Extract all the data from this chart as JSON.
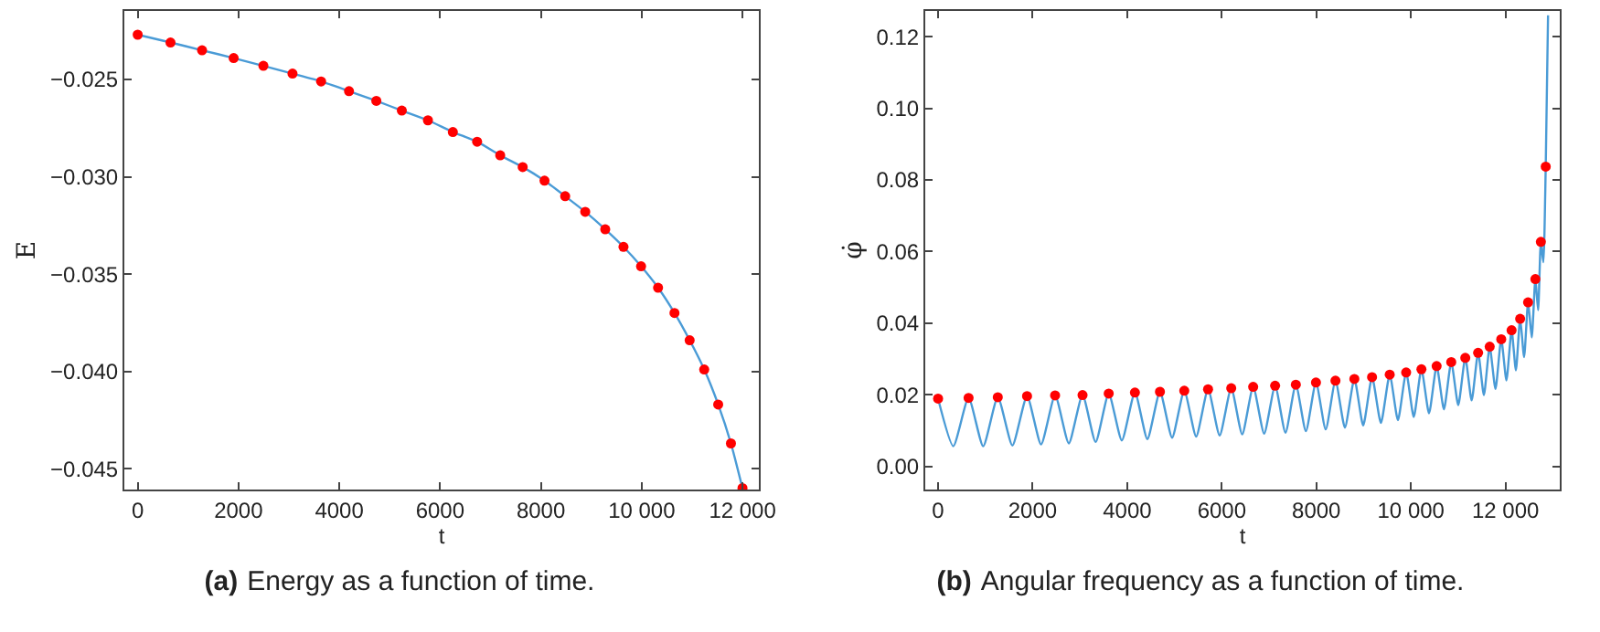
{
  "chart_data": [
    {
      "type": "line",
      "xlabel": "t",
      "ylabel": "E",
      "annotations": [
        "(a)",
        "Energy as a function of time."
      ],
      "xlim": [
        -265,
        12325
      ],
      "ylim": [
        -0.04607,
        -0.02148
      ],
      "xticks": [
        0,
        2000,
        4000,
        6000,
        8000,
        10000,
        12000
      ],
      "yticks": [
        {
          "value": -0.045,
          "label": "−0.045"
        },
        {
          "value": -0.04,
          "label": "−0.040"
        },
        {
          "value": -0.035,
          "label": "−0.035"
        },
        {
          "value": -0.03,
          "label": "−0.030"
        },
        {
          "value": -0.025,
          "label": "−0.025"
        }
      ],
      "grid": false,
      "series": [
        {
          "color": "#4a9bd6",
          "x": [
            0,
            651,
            1277,
            1904,
            2494,
            3072,
            3639,
            4193,
            4735,
            5241,
            5759,
            6253,
            6735,
            7193,
            7639,
            8072,
            8482,
            8880,
            9277,
            9639,
            9988,
            10325,
            10651,
            10952,
            11241,
            11518,
            11771,
            12000
          ],
          "values": [
            -0.0227,
            -0.0231,
            -0.0235,
            -0.0239,
            -0.0243,
            -0.0247,
            -0.0251,
            -0.0256,
            -0.0261,
            -0.0266,
            -0.0271,
            -0.0277,
            -0.0282,
            -0.0289,
            -0.0295,
            -0.0302,
            -0.031,
            -0.0318,
            -0.0327,
            -0.0336,
            -0.0346,
            -0.0357,
            -0.037,
            -0.0384,
            -0.0399,
            -0.0417,
            -0.0437,
            -0.046
          ]
        },
        {
          "type": "scatter",
          "marker": "circle",
          "color": "#ff0000",
          "x": [
            0,
            651,
            1277,
            1904,
            2494,
            3072,
            3639,
            4193,
            4735,
            5241,
            5759,
            6253,
            6735,
            7193,
            7639,
            8072,
            8482,
            8880,
            9277,
            9639,
            9988,
            10325,
            10651,
            10952,
            11241,
            11518,
            11771,
            12000
          ],
          "values": [
            -0.0227,
            -0.0231,
            -0.0235,
            -0.0239,
            -0.0243,
            -0.0247,
            -0.0251,
            -0.0256,
            -0.0261,
            -0.0266,
            -0.0271,
            -0.0277,
            -0.0282,
            -0.0289,
            -0.0295,
            -0.0302,
            -0.031,
            -0.0318,
            -0.0327,
            -0.0336,
            -0.0346,
            -0.0357,
            -0.037,
            -0.0384,
            -0.0399,
            -0.0417,
            -0.0437,
            -0.046
          ]
        }
      ]
    },
    {
      "type": "line",
      "xlabel": "t",
      "ylabel": "φ̇",
      "annotations": [
        "(b)",
        "Angular frequency as a function of time."
      ],
      "xlim": [
        -271,
        13148
      ],
      "ylim": [
        -0.0065,
        0.1272
      ],
      "xticks": [
        0,
        2000,
        4000,
        6000,
        8000,
        10000,
        12000
      ],
      "yticks": [
        {
          "value": 0,
          "label": "0.00"
        },
        {
          "value": 0.02,
          "label": "0.02"
        },
        {
          "value": 0.04,
          "label": "0.04"
        },
        {
          "value": 0.06,
          "label": "0.06"
        },
        {
          "value": 0.08,
          "label": "0.08"
        },
        {
          "value": 0.1,
          "label": "0.10"
        },
        {
          "value": 0.12,
          "label": "0.12"
        }
      ],
      "grid": false,
      "series": [
        {
          "color": "#4a9bd6",
          "x": [
            0,
            322,
            645,
            954,
            1263,
            1572,
            1882,
            2178,
            2475,
            2765,
            3055,
            3332,
            3609,
            3886,
            4163,
            4427,
            4692,
            4950,
            5207,
            5458,
            5710,
            5955,
            6200,
            6432,
            6664,
            6896,
            7128,
            7347,
            7566,
            7779,
            7992,
            8198,
            8404,
            8604,
            8804,
            8991,
            9178,
            9365,
            9552,
            9725,
            9899,
            10060,
            10222,
            10383,
            10544,
            10698,
            10853,
            11001,
            11150,
            11285,
            11421,
            11543,
            11666,
            11788,
            11910,
            12020,
            12129,
            12220,
            12310,
            12394,
            12478,
            12555,
            12632,
            12690,
            12748,
            12800,
            12851,
            12900
          ],
          "values": [
            0.0189,
            0.0056,
            0.0191,
            0.0056,
            0.0193,
            0.0058,
            0.0196,
            0.0061,
            0.0198,
            0.0064,
            0.0199,
            0.0068,
            0.0203,
            0.0072,
            0.0206,
            0.0076,
            0.0208,
            0.008,
            0.0211,
            0.0083,
            0.0215,
            0.0086,
            0.0218,
            0.0089,
            0.0222,
            0.0091,
            0.0225,
            0.0094,
            0.0228,
            0.0098,
            0.0234,
            0.0103,
            0.0239,
            0.0108,
            0.0244,
            0.0114,
            0.0249,
            0.0121,
            0.0256,
            0.0129,
            0.0262,
            0.0138,
            0.0271,
            0.0148,
            0.028,
            0.0159,
            0.0291,
            0.0171,
            0.0303,
            0.0184,
            0.0317,
            0.0199,
            0.0334,
            0.0216,
            0.0355,
            0.024,
            0.038,
            0.0268,
            0.0412,
            0.0305,
            0.0458,
            0.036,
            0.0523,
            0.0436,
            0.0627,
            0.057,
            0.0837,
            0.126
          ]
        },
        {
          "type": "scatter",
          "marker": "circle",
          "color": "#ff0000",
          "x": [
            0,
            645,
            1263,
            1882,
            2475,
            3055,
            3609,
            4163,
            4692,
            5207,
            5710,
            6200,
            6664,
            7128,
            7566,
            7992,
            8404,
            8804,
            9178,
            9552,
            9899,
            10222,
            10544,
            10853,
            11150,
            11421,
            11666,
            11910,
            12129,
            12310,
            12478,
            12632,
            12748,
            12851
          ],
          "values": [
            0.0189,
            0.0191,
            0.0193,
            0.0196,
            0.0198,
            0.0199,
            0.0203,
            0.0206,
            0.0208,
            0.0211,
            0.0215,
            0.0218,
            0.0222,
            0.0225,
            0.0228,
            0.0234,
            0.0239,
            0.0244,
            0.0249,
            0.0256,
            0.0262,
            0.0271,
            0.028,
            0.0291,
            0.0303,
            0.0317,
            0.0334,
            0.0355,
            0.038,
            0.0412,
            0.0458,
            0.0523,
            0.0627,
            0.0837
          ]
        }
      ]
    }
  ]
}
